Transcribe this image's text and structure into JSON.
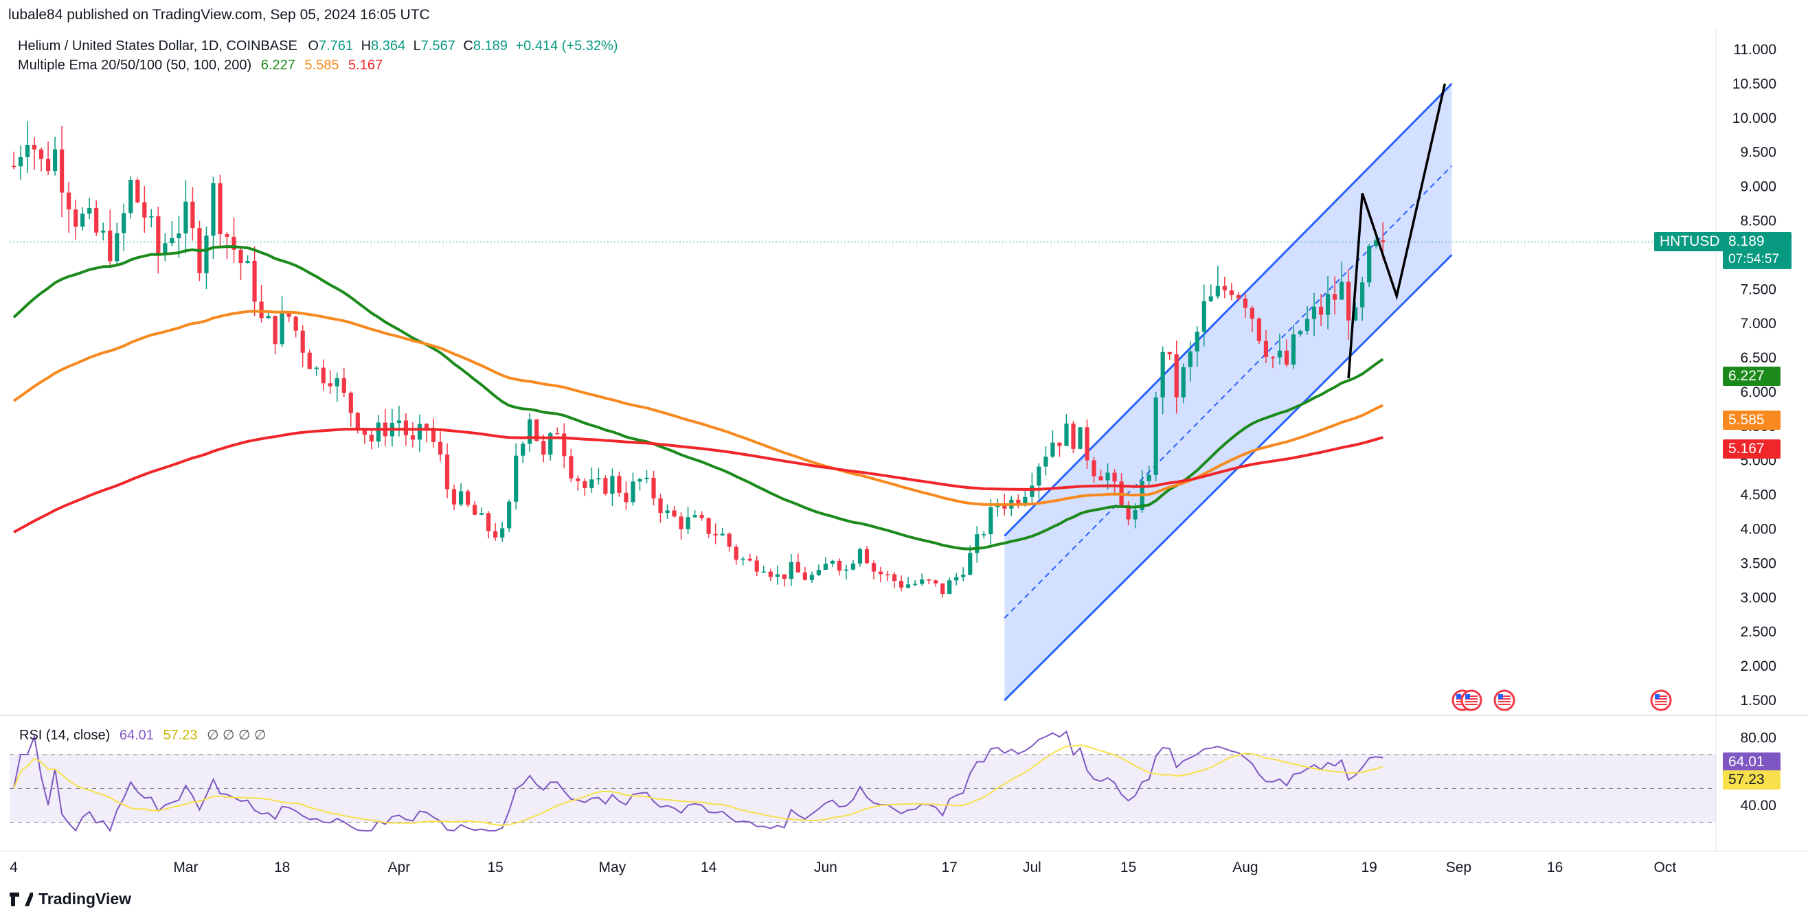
{
  "publisher": "lubale84 published on TradingView.com, Sep 05, 2024 16:05 UTC",
  "legend": {
    "symbol": "Helium / United States Dollar, 1D, COINBASE",
    "o_label": "O",
    "o": "7.761",
    "h_label": "H",
    "h": "8.364",
    "l_label": "L",
    "l": "7.567",
    "c_label": "C",
    "c": "8.189",
    "change": "+0.414 (+5.32%)",
    "ema_name": "Multiple Ema 20/50/100 (50, 100, 200)",
    "ema50": "6.227",
    "ema100": "5.585",
    "ema200": "5.167"
  },
  "rsi_legend": {
    "name": "RSI (14, close)",
    "rsi": "64.01",
    "ma": "57.23",
    "empty": "∅ ∅ ∅ ∅"
  },
  "price_tag": {
    "ticker": "HNTUSD",
    "price": "8.189",
    "countdown": "07:54:57"
  },
  "tags": {
    "ema50": "6.227",
    "ema100": "5.585",
    "ema200": "5.167",
    "rsi": "64.01",
    "rsi_ma": "57.23"
  },
  "footer": {
    "brand": "TradingView"
  },
  "colors": {
    "up": "#089981",
    "down": "#f23645",
    "ema50": "#1b8a1b",
    "ema100": "#f7891f",
    "ema200": "#f0262b",
    "channel": "#2962ff",
    "rsi": "#7e57c2",
    "rsi_ma": "#f7e04b"
  },
  "chart_data": {
    "type": "candlestick",
    "title": "Helium / United States Dollar, 1D, COINBASE",
    "y_ticks": [
      "11.000",
      "10.500",
      "10.000",
      "9.500",
      "9.000",
      "8.500",
      "8.000",
      "7.500",
      "7.000",
      "6.500",
      "6.000",
      "5.500",
      "5.000",
      "4.500",
      "4.000",
      "3.500",
      "3.000",
      "2.500",
      "2.000",
      "1.500"
    ],
    "ylim": [
      1.45,
      11.1
    ],
    "x_ticks": [
      "4",
      "Mar",
      "18",
      "Apr",
      "15",
      "May",
      "14",
      "Jun",
      "17",
      "Jul",
      "15",
      "Aug",
      "19",
      "Sep",
      "16",
      "Oct"
    ],
    "x_tick_days": [
      0,
      25,
      39,
      56,
      70,
      87,
      101,
      118,
      136,
      148,
      162,
      179,
      197,
      210,
      224,
      240
    ],
    "close_series_anchors": [
      [
        0,
        9.3
      ],
      [
        2,
        9.9
      ],
      [
        4,
        9.3
      ],
      [
        6,
        9.5
      ],
      [
        9,
        8.6
      ],
      [
        11,
        8.4
      ],
      [
        13,
        8.2
      ],
      [
        15,
        8.1
      ],
      [
        17,
        9.0
      ],
      [
        19,
        8.6
      ],
      [
        21,
        8.0
      ],
      [
        23,
        8.4
      ],
      [
        25,
        8.5
      ],
      [
        27,
        8.0
      ],
      [
        29,
        8.9
      ],
      [
        31,
        8.3
      ],
      [
        33,
        7.9
      ],
      [
        35,
        7.5
      ],
      [
        36,
        7.0
      ],
      [
        38,
        6.9
      ],
      [
        40,
        7.1
      ],
      [
        42,
        6.7
      ],
      [
        44,
        6.3
      ],
      [
        46,
        6.3
      ],
      [
        48,
        5.9
      ],
      [
        50,
        5.6
      ],
      [
        52,
        5.3
      ],
      [
        54,
        5.5
      ],
      [
        56,
        5.6
      ],
      [
        58,
        5.2
      ],
      [
        60,
        5.5
      ],
      [
        62,
        5.0
      ],
      [
        63,
        4.6
      ],
      [
        65,
        4.4
      ],
      [
        67,
        4.2
      ],
      [
        69,
        4.0
      ],
      [
        71,
        3.9
      ],
      [
        72,
        4.3
      ],
      [
        73,
        5.1
      ],
      [
        75,
        5.7
      ],
      [
        77,
        5.0
      ],
      [
        79,
        5.5
      ],
      [
        81,
        4.9
      ],
      [
        83,
        4.6
      ],
      [
        85,
        4.6
      ],
      [
        87,
        4.7
      ],
      [
        89,
        4.5
      ],
      [
        91,
        4.7
      ],
      [
        93,
        4.5
      ],
      [
        95,
        4.2
      ],
      [
        97,
        4.1
      ],
      [
        99,
        4.1
      ],
      [
        101,
        4.0
      ],
      [
        103,
        3.9
      ],
      [
        105,
        3.6
      ],
      [
        107,
        3.5
      ],
      [
        109,
        3.5
      ],
      [
        111,
        3.3
      ],
      [
        113,
        3.4
      ],
      [
        115,
        3.3
      ],
      [
        117,
        3.3
      ],
      [
        119,
        3.6
      ],
      [
        121,
        3.4
      ],
      [
        123,
        3.8
      ],
      [
        125,
        3.4
      ],
      [
        127,
        3.3
      ],
      [
        129,
        3.2
      ],
      [
        131,
        3.2
      ],
      [
        133,
        3.2
      ],
      [
        135,
        3.1
      ],
      [
        137,
        3.3
      ],
      [
        139,
        3.6
      ],
      [
        141,
        4.0
      ],
      [
        143,
        4.4
      ],
      [
        145,
        4.4
      ],
      [
        147,
        4.6
      ],
      [
        149,
        5.0
      ],
      [
        151,
        5.3
      ],
      [
        153,
        5.4
      ],
      [
        155,
        5.3
      ],
      [
        157,
        4.9
      ],
      [
        159,
        4.8
      ],
      [
        161,
        4.3
      ],
      [
        163,
        4.2
      ],
      [
        165,
        4.9
      ],
      [
        167,
        6.7
      ],
      [
        169,
        6.0
      ],
      [
        171,
        6.5
      ],
      [
        173,
        7.2
      ],
      [
        175,
        7.4
      ],
      [
        177,
        7.6
      ],
      [
        179,
        7.4
      ],
      [
        181,
        6.9
      ],
      [
        183,
        6.5
      ],
      [
        185,
        6.4
      ],
      [
        187,
        6.9
      ],
      [
        189,
        7.1
      ],
      [
        191,
        7.3
      ],
      [
        193,
        7.5
      ],
      [
        195,
        7.0
      ],
      [
        197,
        7.9
      ],
      [
        199,
        8.189
      ]
    ],
    "ema50": {
      "name": "EMA 50",
      "last": 6.227
    },
    "ema100": {
      "name": "EMA 100",
      "last": 5.585
    },
    "ema200": {
      "name": "EMA 200",
      "last": 5.167
    },
    "channel": {
      "lower_start": [
        144,
        1.5
      ],
      "lower_end": [
        209,
        8.0
      ],
      "upper_start": [
        144,
        3.9
      ],
      "upper_end": [
        209,
        10.5
      ],
      "mid_start": [
        144,
        2.7
      ],
      "mid_end": [
        209,
        9.3
      ]
    },
    "projection": [
      [
        194,
        6.2
      ],
      [
        196,
        8.9
      ],
      [
        201,
        7.4
      ],
      [
        208,
        10.5
      ]
    ],
    "rsi": {
      "y_ticks": [
        "80.00",
        "40.00"
      ],
      "ylim": [
        25,
        85
      ],
      "upper": 70,
      "lower": 30,
      "last": 64.01,
      "ma_last": 57.23
    }
  }
}
